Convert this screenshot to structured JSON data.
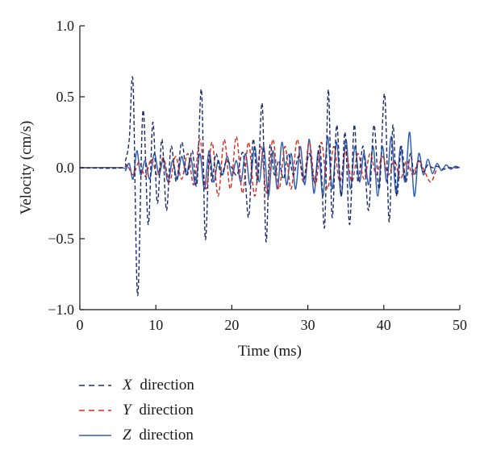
{
  "chart_data": {
    "type": "line",
    "xlabel": "Time (ms)",
    "ylabel": "Velocity (cm/s)",
    "xlim": [
      0,
      50
    ],
    "ylim": [
      -1.0,
      1.0
    ],
    "xticks": [
      "0",
      "10",
      "20",
      "30",
      "40",
      "50"
    ],
    "yticks": [
      "1.0",
      "0.5",
      "0.0",
      "−0.5",
      "−1.0"
    ],
    "grid": false,
    "legend_position": "bottom-left",
    "series": [
      {
        "letter": "X",
        "suffix": " direction",
        "style": "dashed",
        "color": "#1f2a6b",
        "x": [
          0,
          5.5,
          6.0,
          6.5,
          7.0,
          7.6,
          8.3,
          9.0,
          9.6,
          10.2,
          10.8,
          11.4,
          12.0,
          12.7,
          13.4,
          14.1,
          14.8,
          15.4,
          16.0,
          16.5,
          17.0,
          17.4,
          17.9,
          18.6,
          19.3,
          20.0,
          20.7,
          21.5,
          22.2,
          22.8,
          23.4,
          24.0,
          24.5,
          25.0,
          25.6,
          26.2,
          26.8,
          27.4,
          28.1,
          28.8,
          29.5,
          30.2,
          30.9,
          31.6,
          32.2,
          32.7,
          33.2,
          33.8,
          34.4,
          34.9,
          35.5,
          36.1,
          36.6,
          37.3,
          38.0,
          38.7,
          39.4,
          40.1,
          40.7,
          41.2,
          41.7,
          42.3,
          42.9,
          43.5,
          44.0,
          44.6,
          45.2,
          45.8,
          46.4,
          47.0,
          47.8,
          48.6,
          49.4,
          50.0
        ],
        "values": [
          0.0,
          0.0,
          0.05,
          0.2,
          0.6,
          -0.9,
          0.4,
          -0.4,
          0.32,
          -0.25,
          0.2,
          -0.3,
          0.15,
          -0.1,
          0.18,
          -0.05,
          0.12,
          -0.12,
          0.55,
          -0.5,
          0.08,
          -0.1,
          0.1,
          -0.05,
          0.05,
          0.0,
          -0.05,
          0.1,
          -0.35,
          0.2,
          -0.1,
          0.45,
          -0.52,
          0.15,
          -0.05,
          0.05,
          -0.08,
          0.1,
          -0.05,
          0.08,
          -0.08,
          0.1,
          -0.1,
          0.15,
          -0.42,
          0.55,
          -0.35,
          0.3,
          -0.2,
          0.25,
          -0.4,
          0.3,
          -0.1,
          0.15,
          -0.3,
          0.3,
          -0.15,
          0.52,
          -0.38,
          0.3,
          -0.2,
          0.15,
          -0.1,
          0.1,
          -0.05,
          0.05,
          -0.03,
          0.02,
          0.0,
          0.01,
          -0.01,
          0.0,
          0.0,
          0.0
        ]
      },
      {
        "letter": "Y",
        "suffix": " direction",
        "style": "dashed",
        "color": "#d8281b",
        "x": [
          0,
          5.5,
          6.2,
          7.0,
          7.8,
          8.6,
          9.4,
          10.2,
          11.0,
          11.8,
          12.6,
          13.4,
          14.2,
          15.0,
          15.8,
          16.6,
          17.4,
          18.2,
          19.0,
          19.8,
          20.6,
          21.4,
          22.2,
          23.0,
          23.8,
          24.6,
          25.4,
          26.2,
          27.0,
          27.8,
          28.6,
          29.4,
          30.2,
          31.0,
          31.8,
          32.6,
          33.4,
          34.2,
          35.0,
          35.8,
          36.6,
          37.4,
          38.2,
          39.0,
          39.8,
          40.6,
          41.4,
          42.2,
          43.0,
          43.8,
          44.6,
          45.4,
          46.2,
          47.0
        ],
        "values": [
          0.0,
          0.0,
          0.02,
          -0.05,
          0.04,
          -0.06,
          0.06,
          -0.05,
          0.07,
          -0.1,
          0.08,
          -0.08,
          0.1,
          -0.12,
          0.2,
          -0.15,
          0.18,
          -0.2,
          0.2,
          -0.15,
          0.22,
          -0.18,
          0.18,
          -0.2,
          0.15,
          -0.18,
          0.2,
          -0.15,
          0.15,
          -0.15,
          0.2,
          -0.1,
          0.18,
          -0.12,
          0.18,
          -0.15,
          0.15,
          -0.1,
          0.12,
          -0.1,
          0.1,
          -0.08,
          0.1,
          -0.05,
          0.08,
          -0.05,
          0.05,
          -0.08,
          0.05,
          -0.05,
          0.05,
          -0.03,
          -0.1,
          0.0
        ]
      },
      {
        "letter": "Z",
        "suffix": " direction",
        "style": "solid",
        "color": "#2e5fb5",
        "x": [
          0,
          5.5,
          6.0,
          6.5,
          7.0,
          7.5,
          8.0,
          8.6,
          9.2,
          9.8,
          10.4,
          11.0,
          11.6,
          12.2,
          12.8,
          13.4,
          14.0,
          14.6,
          15.2,
          15.8,
          16.4,
          17.0,
          17.6,
          18.2,
          18.8,
          19.4,
          20.0,
          20.6,
          21.2,
          21.8,
          22.4,
          23.0,
          23.6,
          24.2,
          24.8,
          25.4,
          26.0,
          26.6,
          27.2,
          27.8,
          28.4,
          29.0,
          29.6,
          30.2,
          30.8,
          31.4,
          32.0,
          32.6,
          33.2,
          33.8,
          34.4,
          35.0,
          35.6,
          36.2,
          36.8,
          37.4,
          38.0,
          38.6,
          39.2,
          39.8,
          40.4,
          41.0,
          41.6,
          42.2,
          42.8,
          43.4,
          44.0,
          44.6,
          45.2,
          45.8,
          46.4,
          47.0,
          47.6,
          48.2,
          48.8,
          49.4,
          50.0
        ],
        "values": [
          0.0,
          0.0,
          -0.02,
          0.03,
          -0.08,
          0.12,
          -0.05,
          0.05,
          -0.08,
          0.1,
          -0.05,
          0.06,
          -0.1,
          0.05,
          -0.08,
          0.08,
          -0.05,
          0.07,
          -0.12,
          0.1,
          -0.15,
          0.12,
          -0.1,
          0.05,
          -0.05,
          0.08,
          -0.06,
          0.05,
          -0.1,
          0.1,
          -0.12,
          0.15,
          -0.1,
          0.15,
          -0.2,
          0.12,
          -0.15,
          0.18,
          -0.12,
          0.1,
          -0.15,
          0.15,
          -0.12,
          0.2,
          -0.18,
          0.12,
          -0.2,
          0.22,
          -0.15,
          0.18,
          -0.2,
          0.2,
          -0.15,
          0.15,
          -0.1,
          0.1,
          -0.12,
          0.15,
          -0.2,
          0.15,
          -0.1,
          0.22,
          -0.18,
          0.15,
          -0.1,
          0.25,
          -0.2,
          0.1,
          -0.05,
          0.06,
          -0.04,
          0.03,
          -0.02,
          0.02,
          -0.01,
          0.01,
          0.0
        ]
      }
    ]
  }
}
